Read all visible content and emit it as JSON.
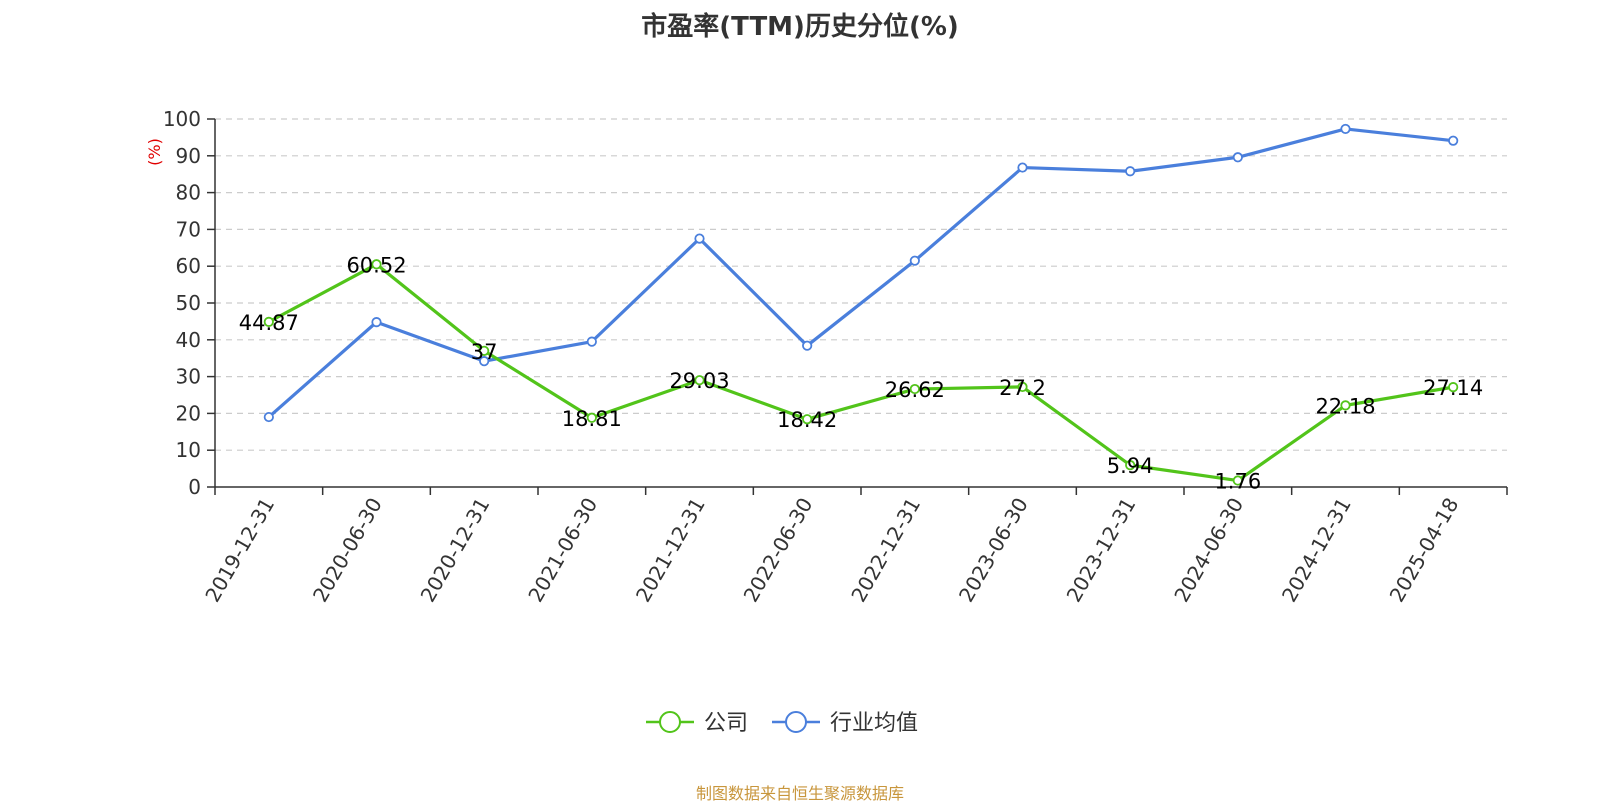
{
  "title": "市盈率(TTM)历史分位(%)",
  "source_note": "制图数据来自恒生聚源数据库",
  "colors": {
    "company": "#52c41a",
    "industry": "#4a7fdc",
    "ylabel": "#e00000",
    "source": "#c8963c",
    "grid": "#cccccc",
    "axis": "#333333"
  },
  "chart_data": {
    "type": "line",
    "title": "市盈率(TTM)历史分位(%)",
    "xlabel": "",
    "ylabel": "(%)",
    "ylim": [
      0,
      100
    ],
    "yticks": [
      0,
      10,
      20,
      30,
      40,
      50,
      60,
      70,
      80,
      90,
      100
    ],
    "grid": true,
    "legend_position": "bottom-center",
    "categories": [
      "2019-12-31",
      "2020-06-30",
      "2020-12-31",
      "2021-06-30",
      "2021-12-31",
      "2022-06-30",
      "2022-12-31",
      "2023-06-30",
      "2023-12-31",
      "2024-06-30",
      "2024-12-31",
      "2025-04-18"
    ],
    "series": [
      {
        "name": "公司",
        "color": "#52c41a",
        "values": [
          44.87,
          60.52,
          37,
          18.81,
          29.03,
          18.42,
          26.62,
          27.2,
          5.94,
          1.76,
          22.18,
          27.14
        ],
        "labels": [
          "44.87",
          "60.52",
          "37",
          "18.81",
          "29.03",
          "18.42",
          "26.62",
          "27.2",
          "5.94",
          "1.76",
          "22.18",
          "27.14"
        ]
      },
      {
        "name": "行业均值",
        "color": "#4a7fdc",
        "values": [
          19,
          44.8,
          34.2,
          39.5,
          67.5,
          38.4,
          61.5,
          86.8,
          85.8,
          89.6,
          97.3,
          94.1
        ]
      }
    ]
  }
}
